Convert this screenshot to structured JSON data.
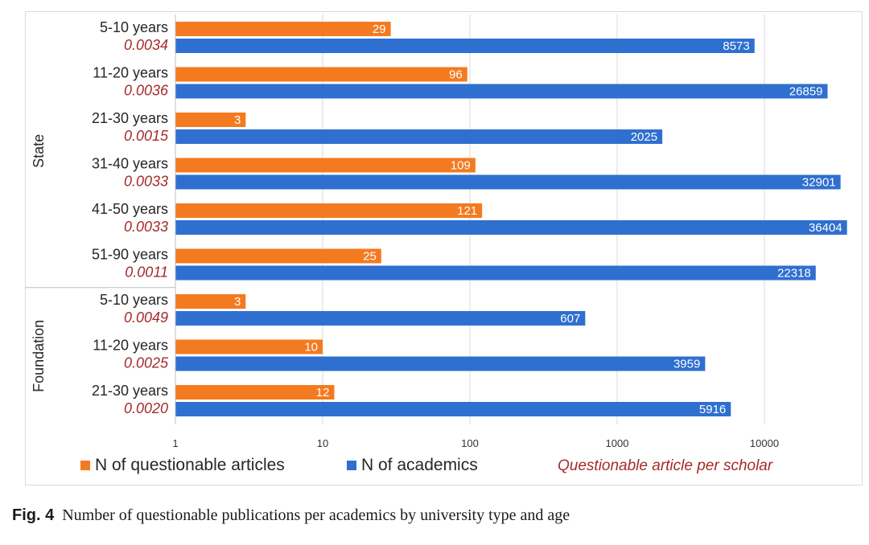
{
  "chart_data": {
    "type": "bar",
    "orientation": "horizontal",
    "x_scale": "log",
    "xlim": [
      1,
      40000
    ],
    "x_ticks": [
      "1",
      "10",
      "100",
      "1000",
      "10000"
    ],
    "grid": "vertical",
    "groups": [
      {
        "name": "State",
        "categories": [
          {
            "label": "5-10 years",
            "ratio": "0.0034",
            "questionable": 29,
            "academics": 8573
          },
          {
            "label": "11-20 years",
            "ratio": "0.0036",
            "questionable": 96,
            "academics": 26859
          },
          {
            "label": "21-30 years",
            "ratio": "0.0015",
            "questionable": 3,
            "academics": 2025
          },
          {
            "label": "31-40 years",
            "ratio": "0.0033",
            "questionable": 109,
            "academics": 32901
          },
          {
            "label": "41-50 years",
            "ratio": "0.0033",
            "questionable": 121,
            "academics": 36404
          },
          {
            "label": "51-90 years",
            "ratio": "0.0011",
            "questionable": 25,
            "academics": 22318
          }
        ]
      },
      {
        "name": "Foundation",
        "categories": [
          {
            "label": "5-10 years",
            "ratio": "0.0049",
            "questionable": 3,
            "academics": 607
          },
          {
            "label": "11-20 years",
            "ratio": "0.0025",
            "questionable": 10,
            "academics": 3959
          },
          {
            "label": "21-30 years",
            "ratio": "0.0020",
            "questionable": 12,
            "academics": 5916
          }
        ]
      }
    ],
    "series": [
      {
        "key": "questionable",
        "name": "N of questionable articles",
        "color": "#f47a20"
      },
      {
        "key": "academics",
        "name": "N of academics",
        "color": "#2f6fd0"
      }
    ],
    "ratio_legend": {
      "name": "Questionable article per scholar",
      "color": "#a52a2a"
    },
    "legend_position": "bottom"
  },
  "caption": {
    "label": "Fig. 4",
    "text": "Number of questionable publications per academics by university type and age"
  }
}
